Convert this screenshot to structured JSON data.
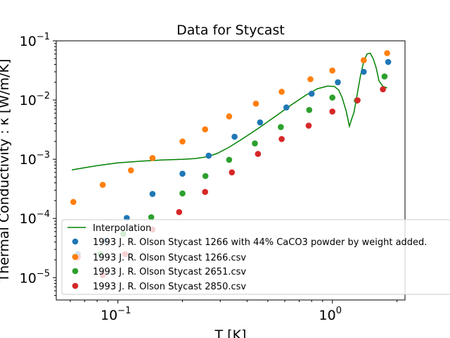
{
  "chart_data": {
    "type": "scatter",
    "title": "Data for Stycast",
    "xlabel": "T [K]",
    "ylabel": "Thermal Conductivity : κ [W/m/K]",
    "xscale": "log",
    "yscale": "log",
    "xlim": [
      0.0516,
      2.18
    ],
    "ylim": [
      4.2e-06,
      0.1
    ],
    "grid": false,
    "legend_position": "lower-left",
    "x_tick_labels": [
      "10^-1",
      "10^0"
    ],
    "y_tick_labels": [
      "10^-5",
      "10^-4",
      "10^-3",
      "10^-2",
      "10^-1"
    ],
    "series": [
      {
        "name": "Interpolation",
        "kind": "line",
        "color": "#008000",
        "x": [
          0.061,
          0.08,
          0.1,
          0.13,
          0.16,
          0.2,
          0.23,
          0.26,
          0.29,
          0.33,
          0.38,
          0.45,
          0.55,
          0.65,
          0.75,
          0.85,
          0.95,
          1.02,
          1.07,
          1.11,
          1.16,
          1.2,
          1.23,
          1.26,
          1.28,
          1.31,
          1.35,
          1.4,
          1.45,
          1.5,
          1.55,
          1.6,
          1.65,
          1.72,
          1.8
        ],
        "y": [
          0.00066,
          0.00078,
          0.00087,
          0.00093,
          0.00097,
          0.001,
          0.00103,
          0.0011,
          0.00125,
          0.0016,
          0.0022,
          0.0033,
          0.0055,
          0.0085,
          0.012,
          0.0155,
          0.0172,
          0.017,
          0.0148,
          0.011,
          0.0065,
          0.0036,
          0.0048,
          0.0062,
          0.0085,
          0.0135,
          0.025,
          0.045,
          0.06,
          0.062,
          0.05,
          0.035,
          0.021,
          0.017,
          0.016
        ]
      },
      {
        "name": "1993 J. R. Olson Stycast 1266 with 44% CaCO3 powder by weight added.",
        "kind": "scatter",
        "color": "#1f77b4",
        "x": [
          0.065,
          0.087,
          0.11,
          0.145,
          0.2,
          0.265,
          0.35,
          0.46,
          0.61,
          0.8,
          1.06,
          1.4,
          1.82
        ],
        "y": [
          2.5e-05,
          4.2e-05,
          0.000102,
          0.00026,
          0.00057,
          0.00115,
          0.0024,
          0.0042,
          0.0075,
          0.0128,
          0.02,
          0.03,
          0.044
        ]
      },
      {
        "name": "1993 J. R. Olson Stycast 1266.csv",
        "kind": "scatter",
        "color": "#ff7f0e",
        "x": [
          0.062,
          0.085,
          0.115,
          0.145,
          0.2,
          0.255,
          0.33,
          0.44,
          0.58,
          0.79,
          1.0,
          1.4,
          1.8
        ],
        "y": [
          0.00019,
          0.00037,
          0.00065,
          0.00105,
          0.002,
          0.0032,
          0.0053,
          0.0087,
          0.0138,
          0.0225,
          0.0315,
          0.047,
          0.062
        ]
      },
      {
        "name": "1993 J. R. Olson Stycast 2651.csv",
        "kind": "scatter",
        "color": "#2ca02c",
        "x": [
          0.063,
          0.083,
          0.106,
          0.143,
          0.2,
          0.256,
          0.33,
          0.435,
          0.575,
          0.78,
          1.0,
          1.3,
          1.75
        ],
        "y": [
          2.3e-05,
          2.5e-05,
          5.5e-05,
          0.000105,
          0.000265,
          0.00052,
          0.00098,
          0.00185,
          0.0035,
          0.0068,
          0.011,
          0.0098,
          0.025
        ]
      },
      {
        "name": "1993 J. R. Olson Stycast 2850.csv",
        "kind": "scatter",
        "color": "#d62728",
        "x": [
          0.065,
          0.085,
          0.108,
          0.145,
          0.193,
          0.255,
          0.34,
          0.45,
          0.58,
          0.775,
          1.0,
          1.31,
          1.72
        ],
        "y": [
          2.2e-05,
          1.1e-05,
          2.5e-05,
          6.5e-05,
          0.000128,
          0.00028,
          0.0006,
          0.00123,
          0.0022,
          0.0037,
          0.0064,
          0.0099,
          0.0152
        ]
      }
    ]
  }
}
